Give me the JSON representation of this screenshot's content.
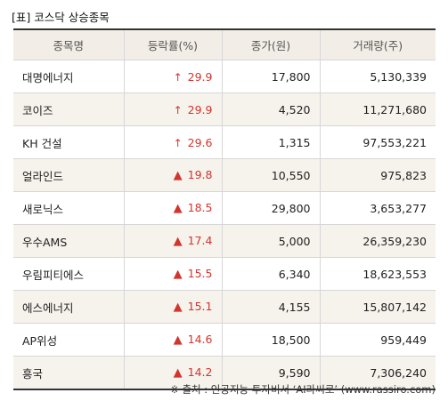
{
  "title": "[표] 코스닥 상승종목",
  "table": {
    "headers": [
      "종목명",
      "등락률(%)",
      "종가(원)",
      "거래량(주)"
    ],
    "rows": [
      {
        "name": "대명에너지",
        "mark": "↑",
        "mark_type": "arrow-up-icon",
        "rate": "29.9",
        "price": "17,800",
        "volume": "5,130,339"
      },
      {
        "name": "코이즈",
        "mark": "↑",
        "mark_type": "arrow-up-icon",
        "rate": "29.9",
        "price": "4,520",
        "volume": "11,271,680"
      },
      {
        "name": "KH 건설",
        "mark": "↑",
        "mark_type": "arrow-up-icon",
        "rate": "29.6",
        "price": "1,315",
        "volume": "97,553,221"
      },
      {
        "name": "얼라인드",
        "mark": "▲",
        "mark_type": "triangle-up-icon",
        "rate": "19.8",
        "price": "10,550",
        "volume": "975,823"
      },
      {
        "name": "새로닉스",
        "mark": "▲",
        "mark_type": "triangle-up-icon",
        "rate": "18.5",
        "price": "29,800",
        "volume": "3,653,277"
      },
      {
        "name": "우수AMS",
        "mark": "▲",
        "mark_type": "triangle-up-icon",
        "rate": "17.4",
        "price": "5,000",
        "volume": "26,359,230"
      },
      {
        "name": "우림피티에스",
        "mark": "▲",
        "mark_type": "triangle-up-icon",
        "rate": "15.5",
        "price": "6,340",
        "volume": "18,623,553"
      },
      {
        "name": "에스에너지",
        "mark": "▲",
        "mark_type": "triangle-up-icon",
        "rate": "15.1",
        "price": "4,155",
        "volume": "15,807,142"
      },
      {
        "name": "AP위성",
        "mark": "▲",
        "mark_type": "triangle-up-icon",
        "rate": "14.6",
        "price": "18,500",
        "volume": "959,449"
      },
      {
        "name": "흥국",
        "mark": "▲",
        "mark_type": "triangle-up-icon",
        "rate": "14.2",
        "price": "9,590",
        "volume": "7,306,240"
      }
    ]
  },
  "source": "※ 출처 : 인공지능 투자비서 ‘AI라씨로’ (www.rassiro.com)",
  "colors": {
    "rise": "#d2352e",
    "header_background": "#f2eee7",
    "row_shade": "#f6f2ec",
    "rule": "#333333"
  }
}
